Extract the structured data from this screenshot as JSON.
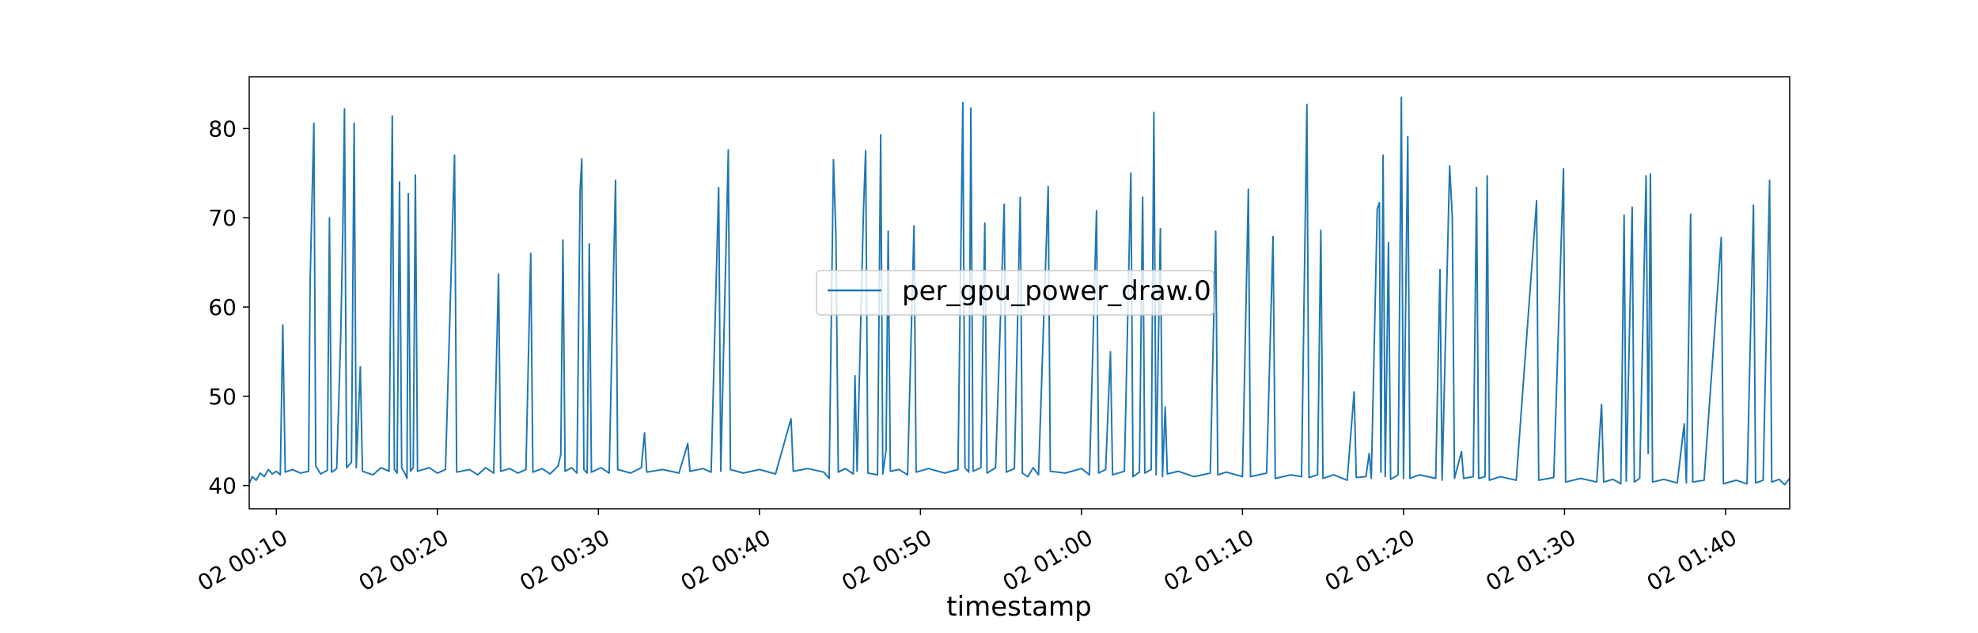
{
  "chart_data": {
    "type": "line",
    "title": "",
    "xlabel": "timestamp",
    "ylabel": "",
    "x_ticks": [
      "02 00:10",
      "02 00:20",
      "02 00:30",
      "02 00:40",
      "02 00:50",
      "02 01:00",
      "02 01:10",
      "02 01:20",
      "02 01:30",
      "02 01:40"
    ],
    "y_ticks": [
      40,
      50,
      60,
      70,
      80
    ],
    "ylim": [
      37.4,
      85.8
    ],
    "xlim": [
      "00:08:19",
      "01:43:59"
    ],
    "grid": false,
    "legend_position": "center",
    "series": [
      {
        "name": "per_gpu_power_draw.0",
        "color": "#1f77b4",
        "points": [
          [
            "00:08:19",
            40.2
          ],
          [
            "00:08:30",
            41.0
          ],
          [
            "00:08:45",
            40.6
          ],
          [
            "00:09:00",
            41.4
          ],
          [
            "00:09:15",
            41.0
          ],
          [
            "00:09:30",
            41.8
          ],
          [
            "00:09:45",
            41.3
          ],
          [
            "00:10:00",
            41.6
          ],
          [
            "00:10:15",
            41.2
          ],
          [
            "00:10:24",
            58.0
          ],
          [
            "00:10:33",
            41.5
          ],
          [
            "00:11:00",
            41.8
          ],
          [
            "00:11:30",
            41.4
          ],
          [
            "00:12:00",
            41.6
          ],
          [
            "00:12:06",
            63.0
          ],
          [
            "00:12:13",
            72.0
          ],
          [
            "00:12:20",
            80.6
          ],
          [
            "00:12:27",
            42.2
          ],
          [
            "00:12:45",
            41.3
          ],
          [
            "00:13:10",
            41.7
          ],
          [
            "00:13:18",
            70.0
          ],
          [
            "00:13:26",
            41.5
          ],
          [
            "00:13:45",
            41.9
          ],
          [
            "00:14:00",
            57.0
          ],
          [
            "00:14:08",
            69.0
          ],
          [
            "00:14:14",
            82.2
          ],
          [
            "00:14:22",
            42.0
          ],
          [
            "00:14:40",
            42.6
          ],
          [
            "00:14:50",
            80.6
          ],
          [
            "00:14:58",
            42.0
          ],
          [
            "00:15:13",
            53.3
          ],
          [
            "00:15:21",
            41.6
          ],
          [
            "00:16:00",
            41.2
          ],
          [
            "00:16:30",
            42.0
          ],
          [
            "00:17:00",
            41.6
          ],
          [
            "00:17:12",
            81.4
          ],
          [
            "00:17:20",
            41.8
          ],
          [
            "00:17:30",
            41.4
          ],
          [
            "00:17:39",
            74.0
          ],
          [
            "00:17:47",
            42.0
          ],
          [
            "00:18:00",
            41.3
          ],
          [
            "00:18:07",
            40.8
          ],
          [
            "00:18:12",
            72.7
          ],
          [
            "00:18:20",
            41.6
          ],
          [
            "00:18:30",
            42.0
          ],
          [
            "00:18:38",
            74.8
          ],
          [
            "00:18:46",
            41.6
          ],
          [
            "00:19:30",
            42.0
          ],
          [
            "00:20:00",
            41.4
          ],
          [
            "00:20:30",
            41.8
          ],
          [
            "00:21:04",
            77.0
          ],
          [
            "00:21:12",
            41.5
          ],
          [
            "00:22:00",
            41.8
          ],
          [
            "00:22:30",
            41.2
          ],
          [
            "00:23:00",
            42.0
          ],
          [
            "00:23:30",
            41.4
          ],
          [
            "00:23:48",
            63.7
          ],
          [
            "00:23:56",
            41.6
          ],
          [
            "00:24:30",
            41.9
          ],
          [
            "00:25:00",
            41.4
          ],
          [
            "00:25:30",
            41.8
          ],
          [
            "00:25:48",
            66.0
          ],
          [
            "00:25:56",
            41.5
          ],
          [
            "00:26:30",
            41.9
          ],
          [
            "00:27:00",
            41.3
          ],
          [
            "00:27:30",
            42.2
          ],
          [
            "00:27:40",
            43.5
          ],
          [
            "00:27:48",
            67.5
          ],
          [
            "00:27:56",
            41.6
          ],
          [
            "00:28:20",
            42.0
          ],
          [
            "00:28:40",
            41.4
          ],
          [
            "00:28:52",
            73.0
          ],
          [
            "00:28:58",
            76.6
          ],
          [
            "00:29:06",
            41.8
          ],
          [
            "00:29:18",
            41.4
          ],
          [
            "00:29:26",
            67.1
          ],
          [
            "00:29:34",
            41.5
          ],
          [
            "00:30:10",
            42.0
          ],
          [
            "00:30:40",
            41.4
          ],
          [
            "00:31:04",
            74.2
          ],
          [
            "00:31:12",
            41.8
          ],
          [
            "00:32:00",
            41.4
          ],
          [
            "00:32:40",
            42.0
          ],
          [
            "00:32:52",
            45.9
          ],
          [
            "00:33:00",
            41.5
          ],
          [
            "00:34:00",
            41.8
          ],
          [
            "00:35:00",
            41.4
          ],
          [
            "00:35:33",
            44.7
          ],
          [
            "00:35:41",
            41.6
          ],
          [
            "00:36:30",
            41.9
          ],
          [
            "00:37:00",
            41.5
          ],
          [
            "00:37:28",
            73.4
          ],
          [
            "00:37:36",
            41.6
          ],
          [
            "00:38:04",
            77.6
          ],
          [
            "00:38:12",
            41.8
          ],
          [
            "00:39:00",
            41.4
          ],
          [
            "00:40:00",
            41.8
          ],
          [
            "00:41:00",
            41.3
          ],
          [
            "00:41:58",
            47.5
          ],
          [
            "00:42:06",
            41.6
          ],
          [
            "00:43:00",
            41.9
          ],
          [
            "00:44:00",
            41.5
          ],
          [
            "00:44:20",
            40.8
          ],
          [
            "00:44:36",
            76.5
          ],
          [
            "00:44:45",
            68.0
          ],
          [
            "00:44:54",
            41.5
          ],
          [
            "00:45:20",
            41.9
          ],
          [
            "00:45:50",
            41.3
          ],
          [
            "00:45:56",
            52.3
          ],
          [
            "00:46:04",
            41.6
          ],
          [
            "00:46:28",
            71.0
          ],
          [
            "00:46:36",
            77.5
          ],
          [
            "00:46:44",
            41.4
          ],
          [
            "00:47:20",
            41.2
          ],
          [
            "00:47:32",
            79.3
          ],
          [
            "00:47:40",
            41.3
          ],
          [
            "00:47:52",
            44.0
          ],
          [
            "00:48:00",
            68.5
          ],
          [
            "00:48:08",
            41.6
          ],
          [
            "00:48:40",
            41.8
          ],
          [
            "00:49:12",
            41.2
          ],
          [
            "00:49:36",
            69.1
          ],
          [
            "00:49:44",
            41.5
          ],
          [
            "00:50:30",
            41.9
          ],
          [
            "00:51:30",
            41.4
          ],
          [
            "00:52:20",
            41.8
          ],
          [
            "00:52:38",
            82.9
          ],
          [
            "00:52:46",
            42.0
          ],
          [
            "00:53:00",
            41.5
          ],
          [
            "00:53:08",
            82.3
          ],
          [
            "00:53:16",
            41.6
          ],
          [
            "00:53:45",
            42.0
          ],
          [
            "00:54:00",
            69.4
          ],
          [
            "00:54:08",
            41.4
          ],
          [
            "00:54:40",
            42.0
          ],
          [
            "00:55:12",
            71.5
          ],
          [
            "00:55:20",
            41.5
          ],
          [
            "00:55:50",
            41.9
          ],
          [
            "00:56:12",
            72.3
          ],
          [
            "00:56:20",
            41.4
          ],
          [
            "00:56:40",
            41.0
          ],
          [
            "00:57:00",
            42.0
          ],
          [
            "00:57:20",
            41.2
          ],
          [
            "00:57:56",
            73.5
          ],
          [
            "00:58:04",
            41.6
          ],
          [
            "00:59:00",
            41.4
          ],
          [
            "01:00:00",
            41.9
          ],
          [
            "01:00:30",
            41.2
          ],
          [
            "01:00:56",
            70.8
          ],
          [
            "01:01:04",
            41.4
          ],
          [
            "01:01:30",
            41.8
          ],
          [
            "01:01:48",
            55.0
          ],
          [
            "01:01:56",
            41.2
          ],
          [
            "01:02:40",
            41.6
          ],
          [
            "01:03:04",
            75.0
          ],
          [
            "01:03:12",
            41.0
          ],
          [
            "01:03:36",
            41.5
          ],
          [
            "01:03:48",
            72.3
          ],
          [
            "01:03:56",
            41.4
          ],
          [
            "01:04:20",
            41.8
          ],
          [
            "01:04:30",
            81.8
          ],
          [
            "01:04:38",
            41.2
          ],
          [
            "01:04:54",
            68.8
          ],
          [
            "01:05:02",
            41.0
          ],
          [
            "01:05:12",
            48.8
          ],
          [
            "01:05:20",
            41.3
          ],
          [
            "01:06:00",
            41.6
          ],
          [
            "01:07:00",
            41.0
          ],
          [
            "01:08:00",
            41.4
          ],
          [
            "01:08:20",
            68.5
          ],
          [
            "01:08:28",
            41.2
          ],
          [
            "01:09:00",
            41.5
          ],
          [
            "01:10:00",
            41.0
          ],
          [
            "01:10:22",
            73.2
          ],
          [
            "01:10:30",
            41.0
          ],
          [
            "01:11:30",
            41.4
          ],
          [
            "01:11:54",
            67.9
          ],
          [
            "01:12:02",
            40.8
          ],
          [
            "01:13:00",
            41.2
          ],
          [
            "01:13:40",
            41.0
          ],
          [
            "01:14:00",
            82.7
          ],
          [
            "01:14:08",
            40.9
          ],
          [
            "01:14:40",
            41.2
          ],
          [
            "01:14:52",
            68.6
          ],
          [
            "01:15:00",
            40.8
          ],
          [
            "01:15:40",
            41.2
          ],
          [
            "01:16:30",
            40.6
          ],
          [
            "01:16:56",
            50.5
          ],
          [
            "01:17:04",
            40.9
          ],
          [
            "01:17:40",
            41.0
          ],
          [
            "01:17:52",
            43.6
          ],
          [
            "01:18:00",
            40.8
          ],
          [
            "01:18:22",
            71.0
          ],
          [
            "01:18:30",
            71.7
          ],
          [
            "01:18:36",
            41.5
          ],
          [
            "01:18:44",
            77.0
          ],
          [
            "01:18:52",
            41.0
          ],
          [
            "01:19:04",
            67.2
          ],
          [
            "01:19:12",
            40.7
          ],
          [
            "01:19:40",
            41.2
          ],
          [
            "01:19:52",
            83.5
          ],
          [
            "01:20:00",
            40.8
          ],
          [
            "01:20:16",
            79.1
          ],
          [
            "01:20:24",
            40.8
          ],
          [
            "01:21:00",
            41.2
          ],
          [
            "01:22:00",
            40.8
          ],
          [
            "01:22:16",
            64.2
          ],
          [
            "01:22:24",
            40.6
          ],
          [
            "01:22:52",
            75.8
          ],
          [
            "01:23:02",
            70.0
          ],
          [
            "01:23:10",
            40.8
          ],
          [
            "01:23:36",
            43.8
          ],
          [
            "01:23:44",
            40.8
          ],
          [
            "01:24:20",
            41.0
          ],
          [
            "01:24:32",
            73.4
          ],
          [
            "01:24:40",
            40.8
          ],
          [
            "01:25:04",
            41.0
          ],
          [
            "01:25:12",
            74.7
          ],
          [
            "01:25:20",
            40.6
          ],
          [
            "01:26:00",
            41.0
          ],
          [
            "01:27:00",
            40.6
          ],
          [
            "01:28:16",
            71.9
          ],
          [
            "01:28:24",
            40.6
          ],
          [
            "01:29:20",
            40.9
          ],
          [
            "01:29:56",
            75.5
          ],
          [
            "01:30:04",
            40.4
          ],
          [
            "01:31:00",
            40.8
          ],
          [
            "01:32:00",
            40.4
          ],
          [
            "01:32:18",
            49.1
          ],
          [
            "01:32:26",
            40.4
          ],
          [
            "01:33:00",
            40.7
          ],
          [
            "01:33:30",
            40.2
          ],
          [
            "01:33:42",
            70.3
          ],
          [
            "01:33:50",
            40.5
          ],
          [
            "01:34:12",
            71.2
          ],
          [
            "01:34:20",
            40.4
          ],
          [
            "01:34:40",
            40.8
          ],
          [
            "01:35:04",
            74.7
          ],
          [
            "01:35:12",
            43.6
          ],
          [
            "01:35:20",
            74.9
          ],
          [
            "01:35:28",
            40.4
          ],
          [
            "01:36:10",
            40.7
          ],
          [
            "01:37:00",
            40.3
          ],
          [
            "01:37:26",
            46.9
          ],
          [
            "01:37:34",
            40.3
          ],
          [
            "01:37:50",
            70.4
          ],
          [
            "01:37:58",
            40.4
          ],
          [
            "01:38:40",
            40.6
          ],
          [
            "01:39:44",
            67.8
          ],
          [
            "01:39:52",
            40.2
          ],
          [
            "01:40:40",
            40.6
          ],
          [
            "01:41:20",
            40.2
          ],
          [
            "01:41:44",
            71.4
          ],
          [
            "01:41:52",
            40.3
          ],
          [
            "01:42:20",
            40.6
          ],
          [
            "01:42:44",
            74.2
          ],
          [
            "01:42:52",
            40.4
          ],
          [
            "01:43:20",
            40.7
          ],
          [
            "01:43:40",
            40.1
          ],
          [
            "01:43:59",
            40.8
          ]
        ]
      }
    ]
  }
}
